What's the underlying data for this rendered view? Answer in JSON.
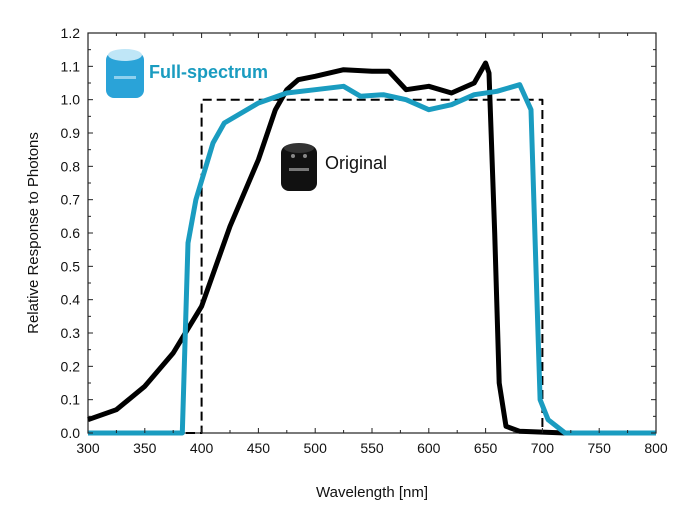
{
  "chart_data": {
    "type": "line",
    "title": "",
    "xlabel": "Wavelength [nm]",
    "ylabel": "Relative Response to Photons",
    "xlim": [
      300,
      800
    ],
    "ylim": [
      0,
      1.2
    ],
    "xticks": [
      300,
      350,
      400,
      450,
      500,
      550,
      600,
      650,
      700,
      750,
      800
    ],
    "yticks": [
      "0.0",
      "0.1",
      "0.2",
      "0.3",
      "0.4",
      "0.5",
      "0.6",
      "0.7",
      "0.8",
      "0.9",
      "1.0",
      "1.1",
      "1.2"
    ],
    "grid": false,
    "series": [
      {
        "name": "Original",
        "color": "#000000",
        "style": "solid",
        "points": [
          [
            300,
            0.04
          ],
          [
            325,
            0.07
          ],
          [
            350,
            0.14
          ],
          [
            375,
            0.24
          ],
          [
            400,
            0.38
          ],
          [
            425,
            0.62
          ],
          [
            450,
            0.82
          ],
          [
            465,
            0.97
          ],
          [
            475,
            1.03
          ],
          [
            485,
            1.06
          ],
          [
            500,
            1.07
          ],
          [
            525,
            1.09
          ],
          [
            550,
            1.085
          ],
          [
            565,
            1.085
          ],
          [
            580,
            1.03
          ],
          [
            600,
            1.04
          ],
          [
            620,
            1.02
          ],
          [
            640,
            1.05
          ],
          [
            650,
            1.11
          ],
          [
            653,
            1.08
          ],
          [
            658,
            0.6
          ],
          [
            662,
            0.15
          ],
          [
            668,
            0.02
          ],
          [
            680,
            0.005
          ],
          [
            720,
            0.0
          ]
        ]
      },
      {
        "name": "Full-spectrum",
        "color": "#1a9cc0",
        "style": "solid",
        "points": [
          [
            300,
            0
          ],
          [
            383,
            0
          ],
          [
            388,
            0.57
          ],
          [
            395,
            0.7
          ],
          [
            410,
            0.87
          ],
          [
            420,
            0.93
          ],
          [
            450,
            0.99
          ],
          [
            475,
            1.02
          ],
          [
            500,
            1.03
          ],
          [
            525,
            1.04
          ],
          [
            540,
            1.01
          ],
          [
            560,
            1.015
          ],
          [
            580,
            1.0
          ],
          [
            600,
            0.97
          ],
          [
            620,
            0.985
          ],
          [
            640,
            1.015
          ],
          [
            660,
            1.025
          ],
          [
            680,
            1.045
          ],
          [
            690,
            0.97
          ],
          [
            698,
            0.1
          ],
          [
            705,
            0.04
          ],
          [
            720,
            0.0
          ],
          [
            800,
            0
          ]
        ]
      },
      {
        "name": "",
        "color": "#000000",
        "style": "dashed",
        "points": [
          [
            300,
            0
          ],
          [
            400,
            0
          ],
          [
            400,
            1.0
          ],
          [
            700,
            1.0
          ],
          [
            700,
            0
          ],
          [
            800,
            0
          ]
        ]
      }
    ],
    "annotations": [
      "Full-spectrum",
      "Original"
    ]
  }
}
